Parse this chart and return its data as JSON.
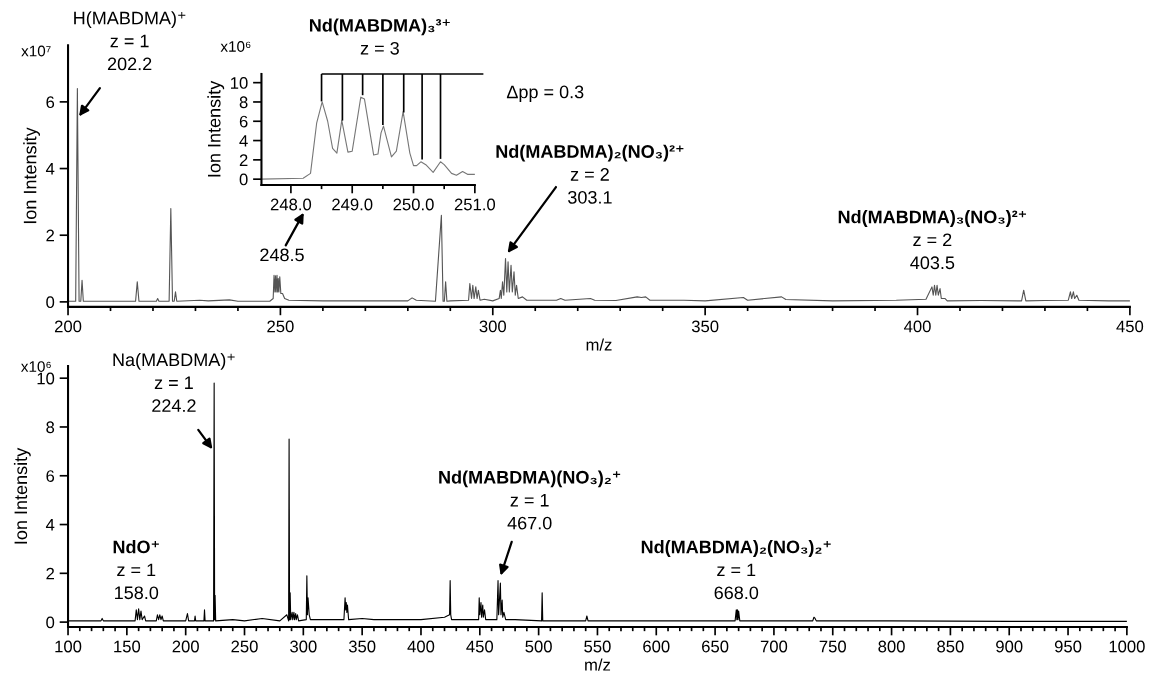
{
  "chart_data": [
    {
      "type": "line",
      "xlabel": "m/z",
      "ylabel": "Ion Intensity",
      "annotations": [
        "x10⁷",
        {
          "text": "H(MABDMA)⁺\nz = 1\n202.2",
          "x": 202.2,
          "y": 5.5
        },
        "248.5",
        {
          "text": "Nd(MABDMA)₂(NO₃)²⁺\nz = 2\n303.1",
          "x": 303.1,
          "y": 1.4
        },
        {
          "text": "Nd(MABDMA)₃(NO₃)²⁺\nz = 2\n403.5",
          "x": 403.5,
          "y": 0.5
        }
      ],
      "series": [
        {
          "color": "#555555",
          "x": [
            200,
            201.8,
            202.2,
            202.6,
            203.0,
            203.3,
            203.6,
            210,
            215.9,
            216.3,
            216.7,
            220.8,
            221.1,
            221.4,
            223.8,
            224.2,
            224.6,
            225.0,
            225.3,
            225.6,
            231,
            233,
            238,
            240,
            247.5,
            248.3,
            248.5,
            248.7,
            248.85,
            249.0,
            249.2,
            249.35,
            249.5,
            249.65,
            249.85,
            250.1,
            250.5,
            251,
            252,
            260,
            270,
            280,
            281,
            282,
            286.5,
            287.9,
            288.3,
            288.6,
            288.9,
            289.2,
            290,
            294.3,
            294.6,
            295,
            295.3,
            295.6,
            296,
            296.3,
            296.6,
            297,
            298,
            300,
            301.5,
            301.8,
            302,
            302.3,
            302.6,
            303,
            303.3,
            303.6,
            303.9,
            304.3,
            304.6,
            305,
            305.3,
            305.6,
            306,
            307,
            308,
            315,
            316,
            317,
            323,
            324,
            329,
            334,
            335,
            336,
            337,
            345,
            350,
            359,
            360,
            368,
            369,
            380,
            395,
            402,
            403.4,
            403.7,
            404,
            404.3,
            404.6,
            404.9,
            405.3,
            405.6,
            406.5,
            407,
            415,
            424.5,
            425,
            425.5,
            430,
            435.5,
            436,
            436.3,
            436.7,
            437,
            437.5,
            438,
            445,
            450
          ],
          "values": [
            0.02,
            0.02,
            6.4,
            0.02,
            0.02,
            0.65,
            0.02,
            0.02,
            0.02,
            0.6,
            0.02,
            0.02,
            0.1,
            0.02,
            0.02,
            2.8,
            0.02,
            0.02,
            0.3,
            0.02,
            0.05,
            0.03,
            0.06,
            0.02,
            0.02,
            0.1,
            0.8,
            0.3,
            0.78,
            0.3,
            0.8,
            0.3,
            0.7,
            0.3,
            0.75,
            0.25,
            0.25,
            0.1,
            0.05,
            0.03,
            0.03,
            0.03,
            0.12,
            0.05,
            0.02,
            2.6,
            0.02,
            0.02,
            0.6,
            0.02,
            0.03,
            0.05,
            0.55,
            0.1,
            0.5,
            0.1,
            0.45,
            0.1,
            0.35,
            0.05,
            0.08,
            0.03,
            0.1,
            0.35,
            0.1,
            0.6,
            0.2,
            1.3,
            0.3,
            1.2,
            0.3,
            1.1,
            0.3,
            0.9,
            0.2,
            0.5,
            0.1,
            0.15,
            0.05,
            0.05,
            0.1,
            0.05,
            0.1,
            0.05,
            0.04,
            0.15,
            0.13,
            0.15,
            0.05,
            0.05,
            0.03,
            0.13,
            0.05,
            0.15,
            0.07,
            0.03,
            0.05,
            0.08,
            0.45,
            0.2,
            0.5,
            0.2,
            0.5,
            0.2,
            0.4,
            0.1,
            0.1,
            0.03,
            0.04,
            0.03,
            0.35,
            0.03,
            0.04,
            0.05,
            0.3,
            0.1,
            0.3,
            0.1,
            0.2,
            0.05,
            0.03,
            0.03
          ]
        }
      ],
      "xlim": [
        200,
        450
      ],
      "ylim": [
        -0.15,
        7.7
      ],
      "xticks": [
        200,
        {
          "value": 210,
          "label": null
        },
        {
          "value": 220,
          "label": null
        },
        {
          "value": 230,
          "label": null
        },
        {
          "value": 240,
          "label": null
        },
        250,
        {
          "value": 260,
          "label": null
        },
        {
          "value": 270,
          "label": null
        },
        {
          "value": 280,
          "label": null
        },
        {
          "value": 290,
          "label": null
        },
        300,
        {
          "value": 310,
          "label": null
        },
        {
          "value": 320,
          "label": null
        },
        {
          "value": 330,
          "label": null
        },
        {
          "value": 340,
          "label": null
        },
        350,
        {
          "value": 360,
          "label": null
        },
        {
          "value": 370,
          "label": null
        },
        {
          "value": 380,
          "label": null
        },
        {
          "value": 390,
          "label": null
        },
        400,
        {
          "value": 410,
          "label": null
        },
        {
          "value": 420,
          "label": null
        },
        {
          "value": 430,
          "label": null
        },
        {
          "value": 440,
          "label": null
        },
        450
      ],
      "yticks": [
        0,
        2,
        4,
        6
      ]
    },
    {
      "type": "line",
      "ylabel": "Ion Intensity",
      "annotations": [
        "x10⁶",
        "Nd(MABDMA)₃³⁺\nz = 3",
        "Δpp = 0.3"
      ],
      "series": [
        {
          "color": "#777777",
          "x": [
            247.52,
            248.2,
            248.32,
            248.42,
            248.51,
            248.6,
            248.68,
            248.75,
            248.83,
            248.93,
            249.0,
            249.14,
            249.2,
            249.35,
            249.42,
            249.47,
            249.51,
            249.64,
            249.72,
            249.83,
            249.94,
            250.0,
            250.05,
            250.12,
            250.2,
            250.32,
            250.44,
            250.5,
            250.62,
            250.7,
            250.8,
            250.88,
            251.0
          ],
          "values": [
            0.0,
            0.1,
            0.6,
            5.8,
            8.0,
            6.0,
            3.2,
            2.7,
            6.1,
            2.8,
            2.9,
            8.5,
            8.3,
            2.5,
            2.6,
            4.8,
            5.5,
            2.3,
            2.9,
            7.0,
            2.7,
            1.4,
            1.4,
            1.8,
            1.5,
            0.7,
            1.8,
            1.5,
            0.6,
            0.4,
            0.8,
            0.5,
            0.5
          ]
        }
      ],
      "ref_lines": [
        {
          "axis": "x",
          "value": 248.5,
          "color": "#000000"
        },
        {
          "axis": "x",
          "value": 248.84,
          "color": "#000000"
        },
        {
          "axis": "x",
          "value": 249.17,
          "color": "#000000"
        },
        {
          "axis": "x",
          "value": 249.5,
          "color": "#000000"
        },
        {
          "axis": "x",
          "value": 249.84,
          "color": "#000000"
        },
        {
          "axis": "x",
          "value": 250.14,
          "color": "#000000"
        },
        {
          "axis": "x",
          "value": 250.44,
          "color": "#000000"
        }
      ],
      "xlim": [
        247.52,
        251.0
      ],
      "ylim": [
        -0.6,
        10.9
      ],
      "xticks": [
        {
          "value": 248.0,
          "label": "248.0"
        },
        {
          "value": 248.5,
          "label": null
        },
        {
          "value": 249.0,
          "label": "249.0"
        },
        {
          "value": 249.5,
          "label": null
        },
        {
          "value": 250.0,
          "label": "250.0"
        },
        {
          "value": 250.5,
          "label": null
        },
        {
          "value": 251.0,
          "label": "251.0"
        }
      ],
      "yticks": [
        0,
        2,
        4,
        6,
        8,
        10
      ]
    },
    {
      "type": "line",
      "xlabel": "m/z",
      "ylabel": "Ion Intensity",
      "annotations": [
        "x10⁶",
        {
          "text": "Na(MABDMA)⁺\nz = 1\n224.2",
          "x": 224.2,
          "y": 7.0
        },
        {
          "text": "NdO⁺\nz = 1\n158.0",
          "x": 158.0,
          "y": 0.55
        },
        {
          "text": "Nd(MABDMA)(NO₃)₂⁺\nz = 1\n467.0",
          "x": 467.0,
          "y": 1.8
        },
        {
          "text": "Nd(MABDMA)₂(NO₃)₂⁺\nz = 1\n668.0",
          "x": 668.0,
          "y": 0.5
        }
      ],
      "series": [
        {
          "color": "#000000",
          "x": [
            100,
            128,
            129,
            130,
            157,
            158,
            159,
            160,
            161,
            162,
            163,
            165,
            166,
            175,
            176,
            177,
            178,
            179,
            180,
            181,
            200,
            201.5,
            202.5,
            207.5,
            208,
            208.5,
            215.5,
            216,
            216.5,
            223.7,
            224.2,
            224.6,
            225,
            225.5,
            240,
            250,
            265,
            280,
            286,
            287.5,
            287.9,
            288.3,
            288.8,
            289.3,
            290.5,
            291,
            292,
            292.5,
            293.5,
            294,
            295,
            296,
            302.5,
            303,
            303.5,
            304,
            305,
            306,
            320,
            334.5,
            335.5,
            336,
            336.5,
            337,
            337.5,
            338.5,
            350,
            360,
            380,
            400,
            420,
            424.3,
            424.8,
            425.3,
            426,
            440,
            449,
            449.5,
            450,
            451,
            451.5,
            452.5,
            453,
            454,
            455,
            464.5,
            465.5,
            466,
            467.5,
            468,
            469,
            469.5,
            470.5,
            472,
            480,
            502.5,
            503,
            503.5,
            520,
            540,
            541,
            542,
            600,
            667,
            668,
            668.5,
            669,
            669.5,
            670,
            671,
            733,
            734,
            735,
            736,
            800,
            900,
            1000
          ],
          "values": [
            0.05,
            0.05,
            0.15,
            0.05,
            0.05,
            0.5,
            0.1,
            0.55,
            0.1,
            0.45,
            0.1,
            0.25,
            0.05,
            0.05,
            0.3,
            0.1,
            0.3,
            0.1,
            0.25,
            0.05,
            0.05,
            0.35,
            0.05,
            0.05,
            0.25,
            0.05,
            0.05,
            0.5,
            0.05,
            0.05,
            9.8,
            0.1,
            1.1,
            0.05,
            0.1,
            0.05,
            0.15,
            0.05,
            0.3,
            0.05,
            7.5,
            0.1,
            1.2,
            0.1,
            0.4,
            0.1,
            0.4,
            0.1,
            0.35,
            0.1,
            0.3,
            0.05,
            0.1,
            1.9,
            0.3,
            1.0,
            0.3,
            0.1,
            0.1,
            0.1,
            1.0,
            0.5,
            0.8,
            0.4,
            0.7,
            0.1,
            0.15,
            0.1,
            0.1,
            0.1,
            0.2,
            0.3,
            1.7,
            0.3,
            0.1,
            0.1,
            0.1,
            1.0,
            0.3,
            0.8,
            0.2,
            0.7,
            0.2,
            0.5,
            0.1,
            0.1,
            1.7,
            0.3,
            1.6,
            0.3,
            0.9,
            0.2,
            0.4,
            0.1,
            0.1,
            0.05,
            1.2,
            0.05,
            0.05,
            0.05,
            0.25,
            0.05,
            0.05,
            0.05,
            0.5,
            0.1,
            0.5,
            0.1,
            0.45,
            0.05,
            0.05,
            0.2,
            0.15,
            0.05,
            0.05,
            0.03,
            0.03
          ]
        }
      ],
      "xlim": [
        100,
        1000
      ],
      "ylim": [
        -0.2,
        10.5
      ],
      "xticks": [
        100,
        {
          "value": 110,
          "label": null
        },
        {
          "value": 120,
          "label": null
        },
        {
          "value": 130,
          "label": null
        },
        {
          "value": 140,
          "label": null
        },
        150,
        {
          "value": 160,
          "label": null
        },
        {
          "value": 170,
          "label": null
        },
        {
          "value": 180,
          "label": null
        },
        {
          "value": 190,
          "label": null
        },
        200,
        {
          "value": 210,
          "label": null
        },
        {
          "value": 220,
          "label": null
        },
        {
          "value": 230,
          "label": null
        },
        {
          "value": 240,
          "label": null
        },
        250,
        {
          "value": 260,
          "label": null
        },
        {
          "value": 270,
          "label": null
        },
        {
          "value": 280,
          "label": null
        },
        {
          "value": 290,
          "label": null
        },
        300,
        {
          "value": 310,
          "label": null
        },
        {
          "value": 320,
          "label": null
        },
        {
          "value": 330,
          "label": null
        },
        {
          "value": 340,
          "label": null
        },
        350,
        {
          "value": 360,
          "label": null
        },
        {
          "value": 370,
          "label": null
        },
        {
          "value": 380,
          "label": null
        },
        {
          "value": 390,
          "label": null
        },
        400,
        {
          "value": 410,
          "label": null
        },
        {
          "value": 420,
          "label": null
        },
        {
          "value": 430,
          "label": null
        },
        {
          "value": 440,
          "label": null
        },
        450,
        {
          "value": 460,
          "label": null
        },
        {
          "value": 470,
          "label": null
        },
        {
          "value": 480,
          "label": null
        },
        {
          "value": 490,
          "label": null
        },
        500,
        {
          "value": 510,
          "label": null
        },
        {
          "value": 520,
          "label": null
        },
        {
          "value": 530,
          "label": null
        },
        {
          "value": 540,
          "label": null
        },
        550,
        {
          "value": 560,
          "label": null
        },
        {
          "value": 570,
          "label": null
        },
        {
          "value": 580,
          "label": null
        },
        {
          "value": 590,
          "label": null
        },
        600,
        {
          "value": 610,
          "label": null
        },
        {
          "value": 620,
          "label": null
        },
        {
          "value": 630,
          "label": null
        },
        {
          "value": 640,
          "label": null
        },
        650,
        {
          "value": 660,
          "label": null
        },
        {
          "value": 670,
          "label": null
        },
        {
          "value": 680,
          "label": null
        },
        {
          "value": 690,
          "label": null
        },
        700,
        {
          "value": 710,
          "label": null
        },
        {
          "value": 720,
          "label": null
        },
        {
          "value": 730,
          "label": null
        },
        {
          "value": 740,
          "label": null
        },
        750,
        {
          "value": 760,
          "label": null
        },
        {
          "value": 770,
          "label": null
        },
        {
          "value": 780,
          "label": null
        },
        {
          "value": 790,
          "label": null
        },
        800,
        {
          "value": 810,
          "label": null
        },
        {
          "value": 820,
          "label": null
        },
        {
          "value": 830,
          "label": null
        },
        {
          "value": 840,
          "label": null
        },
        850,
        {
          "value": 860,
          "label": null
        },
        {
          "value": 870,
          "label": null
        },
        {
          "value": 880,
          "label": null
        },
        {
          "value": 890,
          "label": null
        },
        900,
        {
          "value": 910,
          "label": null
        },
        {
          "value": 920,
          "label": null
        },
        {
          "value": 930,
          "label": null
        },
        {
          "value": 940,
          "label": null
        },
        950,
        {
          "value": 960,
          "label": null
        },
        {
          "value": 970,
          "label": null
        },
        {
          "value": 980,
          "label": null
        },
        {
          "value": 990,
          "label": null
        },
        1000
      ],
      "yticks": [
        0,
        2,
        4,
        6,
        8,
        10
      ]
    }
  ]
}
